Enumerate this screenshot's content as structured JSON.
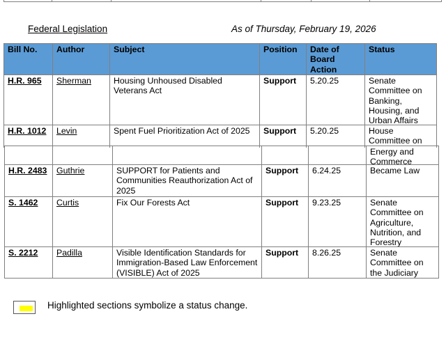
{
  "header": {
    "section_title": "Federal Legislation",
    "as_of": "As of Thursday, February 19, 2026"
  },
  "table": {
    "columns": [
      "Bill No.",
      "Author",
      "Subject",
      "Position",
      "Date of Board Action",
      "Status"
    ],
    "rows": [
      {
        "bill": "H.R. 965",
        "author": "Sherman",
        "subject": "Housing Unhoused Disabled Veterans Act",
        "position": "Support",
        "date": "5.20.25",
        "status": "Senate Committee on Banking, Housing, and Urban Affairs"
      },
      {
        "bill": "H.R. 1012",
        "author": "Levin",
        "subject": "Spent Fuel Prioritization Act of 2025",
        "position": "Support",
        "date": "5.20.25",
        "status": "House Committee on",
        "status_continued": "Energy and Commerce"
      },
      {
        "bill": "H.R. 2483",
        "author": "Guthrie",
        "subject": "SUPPORT for Patients and Communities Reauthorization Act of 2025",
        "position": "Support",
        "date": "6.24.25",
        "status": "Became Law"
      },
      {
        "bill": "S. 1462",
        "author": "Curtis",
        "subject": "Fix Our Forests Act",
        "position": "Support",
        "date": "9.23.25",
        "status": "Senate Committee on Agriculture, Nutrition, and Forestry"
      },
      {
        "bill": "S. 2212",
        "author": "Padilla",
        "subject": "Visible Identification Standards for Immigration-Based Law Enforcement (VISIBLE) Act of 2025",
        "position": "Support",
        "date": "8.26.25",
        "status": "Senate Committee on the Judiciary"
      }
    ]
  },
  "legend": {
    "text": "Highlighted sections symbolize a status change.",
    "highlight_color": "#ffff00"
  },
  "colors": {
    "header_fill": "#5b9bd5"
  }
}
